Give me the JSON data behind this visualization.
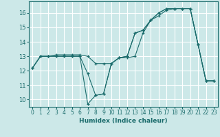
{
  "xlabel": "Humidex (Indice chaleur)",
  "background_color": "#cce8e8",
  "grid_color": "#ffffff",
  "line_color": "#1a6b6b",
  "xlim": [
    -0.5,
    23.5
  ],
  "ylim": [
    9.5,
    16.8
  ],
  "yticks": [
    10,
    11,
    12,
    13,
    14,
    15,
    16
  ],
  "xticks": [
    0,
    1,
    2,
    3,
    4,
    5,
    6,
    7,
    8,
    9,
    10,
    11,
    12,
    13,
    14,
    15,
    16,
    17,
    18,
    19,
    20,
    21,
    22,
    23
  ],
  "lines": [
    {
      "x": [
        0,
        1,
        2,
        3,
        4,
        5,
        6,
        7,
        8,
        9,
        10,
        11,
        12,
        13,
        14,
        15,
        16,
        17,
        18,
        19,
        20,
        21,
        22,
        23
      ],
      "y": [
        12.2,
        13.0,
        13.0,
        13.1,
        13.1,
        13.1,
        13.1,
        13.0,
        12.5,
        12.5,
        12.5,
        12.9,
        12.9,
        13.0,
        14.6,
        15.5,
        15.8,
        16.2,
        16.3,
        16.3,
        16.3,
        13.8,
        11.3,
        11.3
      ]
    },
    {
      "x": [
        0,
        1,
        2,
        3,
        4,
        5,
        6,
        7,
        8,
        9,
        10,
        11,
        12,
        13,
        14,
        15,
        16,
        17,
        18,
        19,
        20,
        21,
        22,
        23
      ],
      "y": [
        12.2,
        13.0,
        13.0,
        13.0,
        13.0,
        13.0,
        13.0,
        11.8,
        10.3,
        10.4,
        12.5,
        12.9,
        13.0,
        14.6,
        14.8,
        15.5,
        16.0,
        16.3,
        16.3,
        16.3,
        16.3,
        13.8,
        11.3,
        11.3
      ]
    },
    {
      "x": [
        0,
        1,
        2,
        3,
        4,
        5,
        6,
        7,
        8,
        9,
        10,
        11,
        12,
        13,
        14,
        15,
        16,
        17,
        18,
        19,
        20,
        21,
        22,
        23
      ],
      "y": [
        12.2,
        13.0,
        13.0,
        13.0,
        13.0,
        13.0,
        13.0,
        9.7,
        10.3,
        10.4,
        12.5,
        12.9,
        13.0,
        14.6,
        14.8,
        15.5,
        16.0,
        16.3,
        16.3,
        16.3,
        16.3,
        13.8,
        11.3,
        11.3
      ]
    }
  ]
}
